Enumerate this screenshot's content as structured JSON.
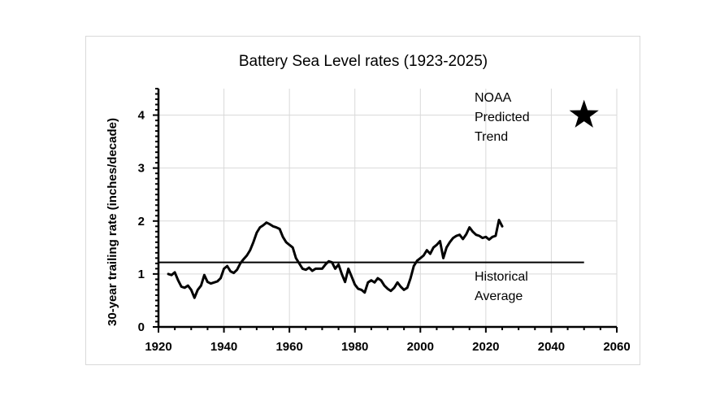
{
  "chart_data": {
    "type": "line",
    "title": "Battery Sea Level rates (1923-2025)",
    "ylabel": "30-year trailing rate (inches/decade)",
    "xlabel": "",
    "xlim": [
      1920,
      2060
    ],
    "ylim": [
      0,
      4.5
    ],
    "x_ticks": [
      1920,
      1940,
      1960,
      1980,
      2000,
      2020,
      2040,
      2060
    ],
    "y_ticks": [
      0,
      1,
      2,
      3,
      4
    ],
    "grid": true,
    "series": [
      {
        "name": "",
        "x": [
          1923,
          1924,
          1925,
          1926,
          1927,
          1928,
          1929,
          1930,
          1931,
          1932,
          1933,
          1934,
          1935,
          1936,
          1937,
          1938,
          1939,
          1940,
          1941,
          1942,
          1943,
          1944,
          1945,
          1946,
          1947,
          1948,
          1949,
          1950,
          1951,
          1952,
          1953,
          1954,
          1955,
          1956,
          1957,
          1958,
          1959,
          1960,
          1961,
          1962,
          1963,
          1964,
          1965,
          1966,
          1967,
          1968,
          1969,
          1970,
          1971,
          1972,
          1973,
          1974,
          1975,
          1976,
          1977,
          1978,
          1979,
          1980,
          1981,
          1982,
          1983,
          1984,
          1985,
          1986,
          1987,
          1988,
          1989,
          1990,
          1991,
          1992,
          1993,
          1994,
          1995,
          1996,
          1997,
          1998,
          1999,
          2000,
          2001,
          2002,
          2003,
          2004,
          2005,
          2006,
          2007,
          2008,
          2009,
          2010,
          2011,
          2012,
          2013,
          2014,
          2015,
          2016,
          2017,
          2018,
          2019,
          2020,
          2021,
          2022,
          2023,
          2024,
          2025
        ],
        "values": [
          1.0,
          0.98,
          1.03,
          0.88,
          0.76,
          0.74,
          0.78,
          0.7,
          0.55,
          0.7,
          0.78,
          0.98,
          0.85,
          0.82,
          0.84,
          0.86,
          0.92,
          1.1,
          1.15,
          1.05,
          1.02,
          1.08,
          1.2,
          1.28,
          1.35,
          1.45,
          1.6,
          1.78,
          1.88,
          1.92,
          1.97,
          1.94,
          1.9,
          1.88,
          1.85,
          1.7,
          1.6,
          1.55,
          1.5,
          1.3,
          1.2,
          1.1,
          1.08,
          1.12,
          1.06,
          1.1,
          1.1,
          1.1,
          1.18,
          1.24,
          1.22,
          1.1,
          1.18,
          1.0,
          0.85,
          1.1,
          0.95,
          0.8,
          0.72,
          0.7,
          0.65,
          0.84,
          0.88,
          0.84,
          0.92,
          0.88,
          0.78,
          0.72,
          0.68,
          0.74,
          0.84,
          0.76,
          0.7,
          0.74,
          0.92,
          1.15,
          1.25,
          1.3,
          1.35,
          1.45,
          1.38,
          1.5,
          1.55,
          1.62,
          1.3,
          1.5,
          1.6,
          1.68,
          1.72,
          1.74,
          1.66,
          1.75,
          1.88,
          1.8,
          1.74,
          1.72,
          1.68,
          1.7,
          1.65,
          1.7,
          1.72,
          2.02,
          1.9
        ]
      }
    ],
    "historical_average": {
      "value": 1.22,
      "x_start": 1920,
      "x_end": 2050,
      "label_line1": "Historical",
      "label_line2": "Average"
    },
    "prediction": {
      "x": 2050,
      "value": 4.0,
      "label_line1": "NOAA",
      "label_line2": "Predicted",
      "label_line3": "Trend"
    }
  }
}
